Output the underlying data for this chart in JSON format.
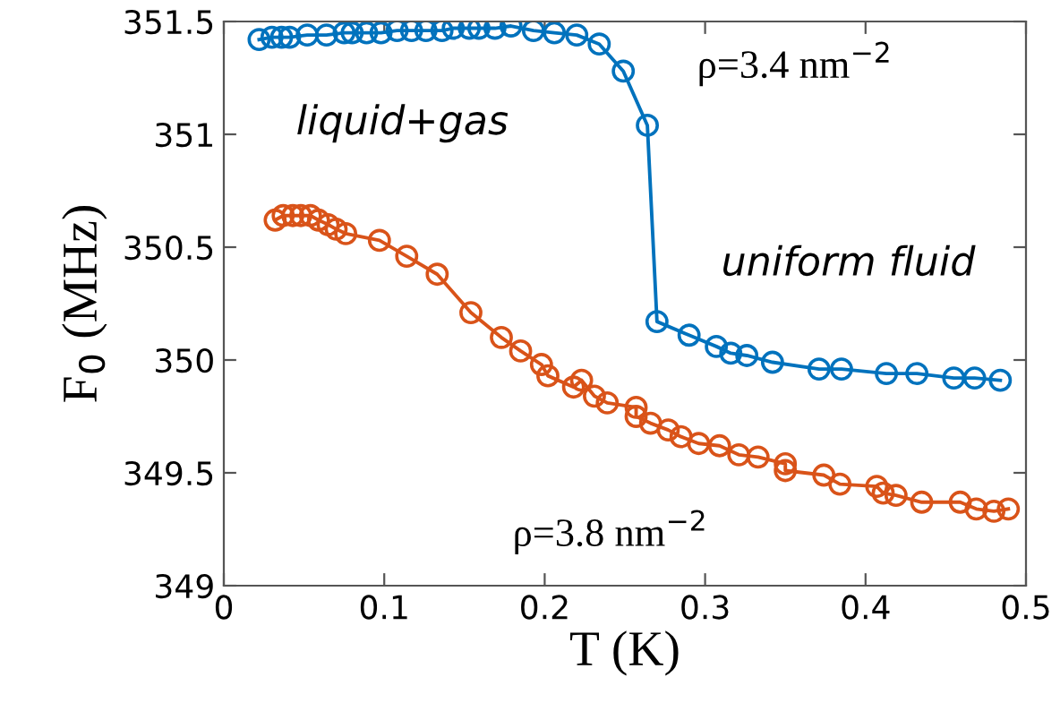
{
  "chart_data": {
    "type": "line",
    "xlabel": "T (K)",
    "ylabel": "F$_{0}$ (MHz)",
    "xlim": [
      0,
      0.5
    ],
    "ylim": [
      349,
      351.5
    ],
    "xticks": [
      0,
      0.1,
      0.2,
      0.3,
      0.4,
      0.5
    ],
    "yticks": [
      349,
      349.5,
      350,
      350.5,
      351,
      351.5
    ],
    "grid": false,
    "legend": false,
    "marker": "circle",
    "line_style": "solid",
    "annotations": [
      "liquid+gas",
      "uniform fluid",
      "ρ=3.4 nm$^{−2}$",
      "ρ=3.8 nm$^{−2}$"
    ],
    "series": [
      {
        "color": "#0072bd",
        "x": [
          0.022,
          0.03,
          0.036,
          0.041,
          0.052,
          0.064,
          0.075,
          0.08,
          0.089,
          0.098,
          0.108,
          0.117,
          0.126,
          0.136,
          0.143,
          0.153,
          0.159,
          0.169,
          0.179,
          0.193,
          0.206,
          0.22,
          0.234,
          0.249,
          0.264,
          0.27,
          0.29,
          0.307,
          0.316,
          0.326,
          0.342,
          0.371,
          0.385,
          0.413,
          0.432,
          0.455,
          0.468,
          0.484
        ],
        "values": [
          351.42,
          351.43,
          351.43,
          351.43,
          351.44,
          351.44,
          351.45,
          351.45,
          351.45,
          351.45,
          351.46,
          351.46,
          351.46,
          351.46,
          351.47,
          351.47,
          351.47,
          351.47,
          351.48,
          351.46,
          351.45,
          351.44,
          351.4,
          351.28,
          351.04,
          350.17,
          350.11,
          350.06,
          350.03,
          350.02,
          349.99,
          349.96,
          349.96,
          349.94,
          349.94,
          349.92,
          349.92,
          349.91
        ]
      },
      {
        "color": "#d95319",
        "x": [
          0.032,
          0.037,
          0.043,
          0.048,
          0.054,
          0.059,
          0.065,
          0.07,
          0.076,
          0.097,
          0.114,
          0.133,
          0.154,
          0.173,
          0.185,
          0.198,
          0.202,
          0.218,
          0.223,
          0.231,
          0.239,
          0.257,
          0.257,
          0.266,
          0.277,
          0.285,
          0.296,
          0.309,
          0.321,
          0.333,
          0.35,
          0.35,
          0.374,
          0.384,
          0.407,
          0.411,
          0.419,
          0.435,
          0.459,
          0.469,
          0.48,
          0.489
        ],
        "values": [
          350.62,
          350.64,
          350.64,
          350.64,
          350.64,
          350.62,
          350.6,
          350.58,
          350.56,
          350.53,
          350.46,
          350.38,
          350.21,
          350.1,
          350.04,
          349.98,
          349.93,
          349.88,
          349.91,
          349.84,
          349.81,
          349.79,
          349.75,
          349.72,
          349.69,
          349.66,
          349.63,
          349.62,
          349.58,
          349.57,
          349.54,
          349.51,
          349.49,
          349.45,
          349.44,
          349.41,
          349.4,
          349.37,
          349.37,
          349.34,
          349.33,
          349.34
        ]
      }
    ]
  }
}
